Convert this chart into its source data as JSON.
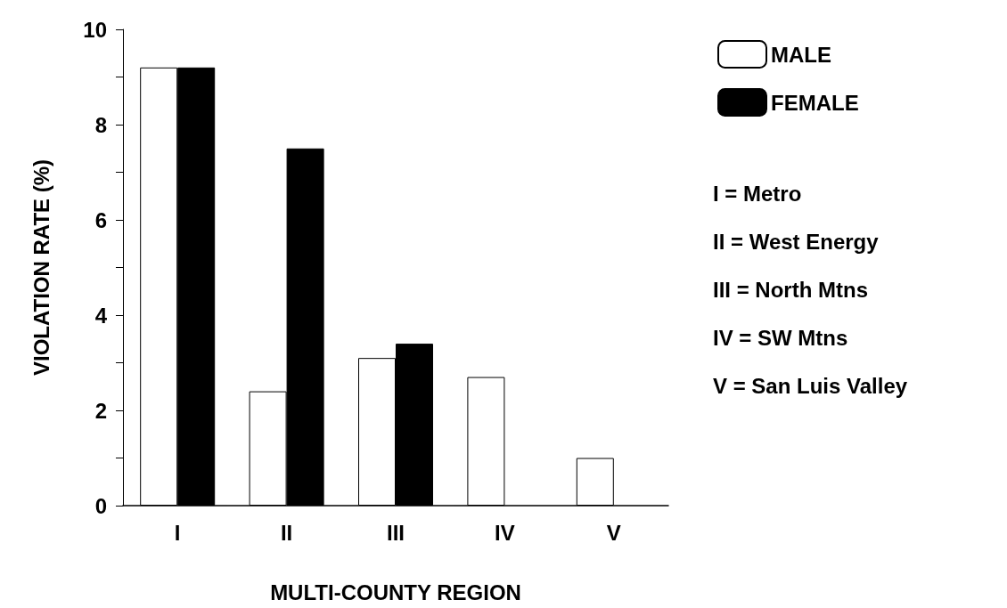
{
  "chart_data": {
    "type": "bar",
    "xlabel": "MULTI-COUNTY REGION",
    "ylabel": "VIOLATION RATE (%)",
    "categories": [
      "I",
      "II",
      "III",
      "IV",
      "V"
    ],
    "series": [
      {
        "name": "MALE",
        "color": "#ffffff",
        "values": [
          9.2,
          2.4,
          3.1,
          2.7,
          1.0
        ]
      },
      {
        "name": "FEMALE",
        "color": "#000000",
        "values": [
          9.2,
          7.5,
          3.4,
          null,
          null
        ]
      }
    ],
    "ylim": [
      0,
      10
    ],
    "yticks": [
      0,
      {
        "value": 1,
        "label": null
      },
      2,
      {
        "value": 3,
        "label": null
      },
      4,
      {
        "value": 5,
        "label": null
      },
      6,
      {
        "value": 7,
        "label": null
      },
      8,
      {
        "value": 9,
        "label": null
      },
      10
    ],
    "annotations": [
      "I = Metro",
      "II = West Energy",
      "III = North Mtns",
      "IV = SW Mtns",
      "V = San Luis Valley"
    ],
    "legend": "right",
    "grid": false
  }
}
